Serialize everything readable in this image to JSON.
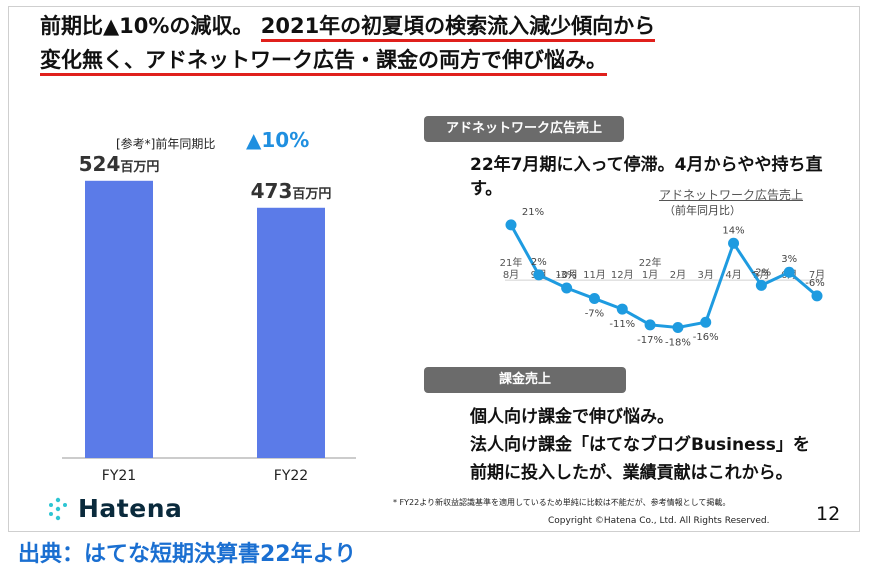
{
  "headline": {
    "line1_plain": "前期比▲10%の減収。",
    "line1_underlined": "2021年の初夏頃の検索流入減少傾向から",
    "line2_underlined": "変化無く、アドネットワーク広告・課金の両方で伸び悩み。"
  },
  "reference": {
    "note": "[参考*]前年同期比",
    "value": "▲10%"
  },
  "chart_data": [
    {
      "type": "bar",
      "categories": [
        "FY21",
        "FY22"
      ],
      "values": [
        524,
        473
      ],
      "value_labels": [
        "524",
        "473"
      ],
      "unit": "百万円",
      "ylim": [
        0,
        620
      ],
      "color": "#5b7be8"
    },
    {
      "type": "line",
      "title": "アドネットワーク広告売上",
      "subtitle": "（前年同月比）",
      "x": [
        "8月",
        "9月",
        "10月",
        "11月",
        "12月",
        "1月",
        "2月",
        "3月",
        "4月",
        "5月",
        "6月",
        "7月"
      ],
      "year_labels": {
        "0": "21年",
        "5": "22年"
      },
      "values": [
        21,
        2,
        -3,
        -7,
        -11,
        -17,
        -18,
        -16,
        14,
        -2,
        3,
        -6
      ],
      "value_labels": [
        "21%",
        "2%",
        "-3%",
        "-7%",
        "-11%",
        "-17%",
        "-18%",
        "-16%",
        "14%",
        "-2%",
        "3%",
        "-6%"
      ],
      "ylim": [
        -22,
        24
      ],
      "color": "#1e9be0"
    }
  ],
  "ad_section": {
    "pill": "アドネットワーク広告売上",
    "text": "22年7月期に入って停滞。4月からやや持ち直す。"
  },
  "course_section": {
    "pill": "課金売上",
    "line1": "個人向け課金で伸び悩み。",
    "line2": "法人向け課金「はてなブログBusiness」を",
    "line3": "前期に投入したが、業績貢献はこれから。"
  },
  "footnote": "* FY22より新収益認識基準を適用しているため単純に比較は不能だが、参考情報として掲載。",
  "copyright": "Copyright ©Hatena Co., Ltd. All Rights Reserved.",
  "page_number": "12",
  "logo_text": "Hatena",
  "source": "出典：はてな短期決算書22年より"
}
